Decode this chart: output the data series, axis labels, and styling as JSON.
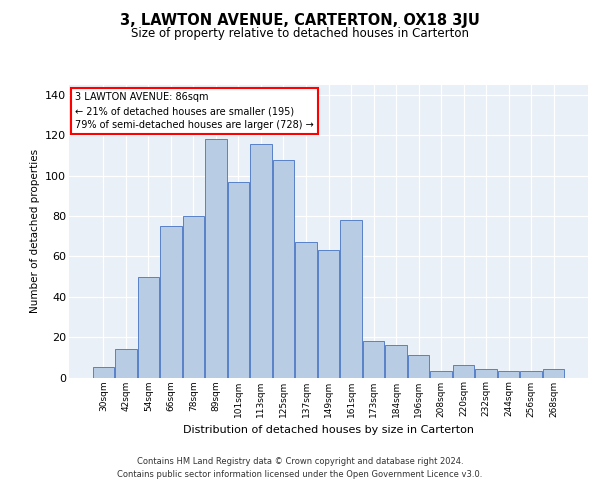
{
  "title": "3, LAWTON AVENUE, CARTERTON, OX18 3JU",
  "subtitle": "Size of property relative to detached houses in Carterton",
  "xlabel": "Distribution of detached houses by size in Carterton",
  "ylabel": "Number of detached properties",
  "categories": [
    "30sqm",
    "42sqm",
    "54sqm",
    "66sqm",
    "78sqm",
    "89sqm",
    "101sqm",
    "113sqm",
    "125sqm",
    "137sqm",
    "149sqm",
    "161sqm",
    "173sqm",
    "184sqm",
    "196sqm",
    "208sqm",
    "220sqm",
    "232sqm",
    "244sqm",
    "256sqm",
    "268sqm"
  ],
  "values": [
    5,
    14,
    50,
    75,
    80,
    118,
    97,
    116,
    108,
    67,
    63,
    78,
    18,
    16,
    11,
    3,
    6,
    4,
    3,
    3,
    4
  ],
  "bar_color": "#b8cce4",
  "bar_edge_color": "#4472c4",
  "annotation_line1": "3 LAWTON AVENUE: 86sqm",
  "annotation_line2": "← 21% of detached houses are smaller (195)",
  "annotation_line3": "79% of semi-detached houses are larger (728) →",
  "annotation_box_color": "white",
  "annotation_box_edge_color": "red",
  "property_bin_index": 4,
  "ylim": [
    0,
    145
  ],
  "yticks": [
    0,
    20,
    40,
    60,
    80,
    100,
    120,
    140
  ],
  "background_color": "#eaf0f8",
  "footer_line1": "Contains HM Land Registry data © Crown copyright and database right 2024.",
  "footer_line2": "Contains public sector information licensed under the Open Government Licence v3.0."
}
